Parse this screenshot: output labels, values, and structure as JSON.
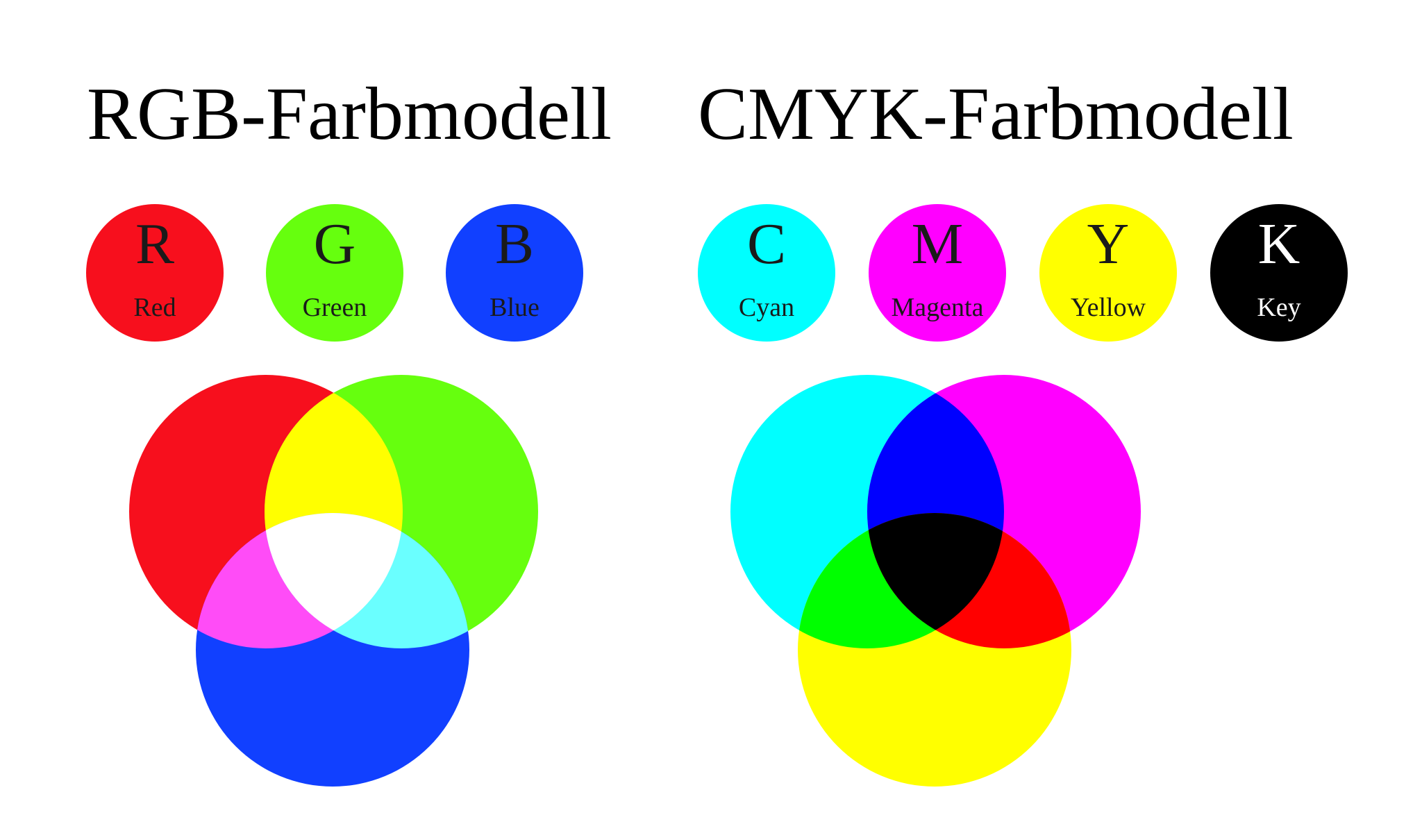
{
  "rgb": {
    "title": "RGB-Farbmodell",
    "swatches": [
      {
        "letter": "R",
        "name": "Red",
        "color": "#f70f1d",
        "text_color": "#1a1a1a"
      },
      {
        "letter": "G",
        "name": "Green",
        "color": "#66ff0e",
        "text_color": "#1a1a1a"
      },
      {
        "letter": "B",
        "name": "Blue",
        "color": "#1140ff",
        "text_color": "#1a1a1a"
      }
    ],
    "venn": {
      "red": "#f70f1d",
      "green": "#66ff0e",
      "blue": "#1140ff",
      "red_green": "#ffff00",
      "red_blue": "#ff4cf7",
      "green_blue": "#6affff",
      "all": "#ffffff"
    }
  },
  "cmyk": {
    "title": "CMYK-Farbmodell",
    "swatches": [
      {
        "letter": "C",
        "name": "Cyan",
        "color": "#00ffff",
        "text_color": "#1a1a1a"
      },
      {
        "letter": "M",
        "name": "Magenta",
        "color": "#ff00ff",
        "text_color": "#1a1a1a"
      },
      {
        "letter": "Y",
        "name": "Yellow",
        "color": "#ffff00",
        "text_color": "#1a1a1a"
      },
      {
        "letter": "K",
        "name": "Key",
        "color": "#000000",
        "text_color": "#ffffff"
      }
    ],
    "venn": {
      "cyan": "#00ffff",
      "magenta": "#ff00ff",
      "yellow": "#ffff00",
      "cyan_magenta": "#0000ff",
      "cyan_yellow": "#00ff00",
      "magenta_yellow": "#ff0000",
      "all": "#000000"
    }
  }
}
